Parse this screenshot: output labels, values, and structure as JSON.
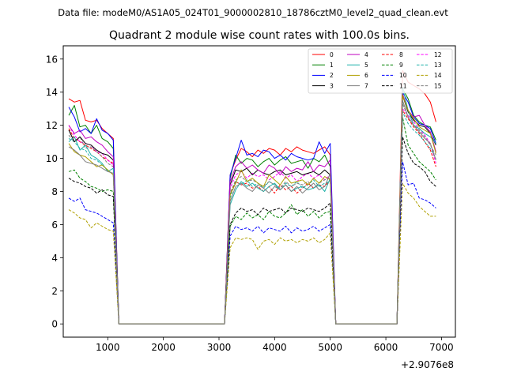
{
  "chart_data": {
    "type": "line",
    "suptitle": "Data file: modeM0/AS1A05_024T01_9000002810_18786cztM0_level2_quad_clean.evt",
    "title": "Quadrant 2 module wise count rates with 100.0s bins.",
    "xlabel": "",
    "ylabel": "",
    "offset_text": "+2.9076e8",
    "xlim": [
      200,
      7250
    ],
    "ylim": [
      -0.8,
      16.8
    ],
    "x_ticks": [
      1000,
      2000,
      3000,
      4000,
      5000,
      6000,
      7000
    ],
    "y_ticks": [
      0,
      2,
      4,
      6,
      8,
      10,
      12,
      14,
      16
    ],
    "legend_position": "top-right",
    "legend_ncol": 4,
    "segments": [
      {
        "start": 300,
        "end": 1100,
        "step": 100
      },
      {
        "start": 3200,
        "end": 5000,
        "step": 100
      },
      {
        "start": 6300,
        "end": 6900,
        "step": 100
      }
    ],
    "zero_edges": [
      1200,
      3100,
      5100,
      6200
    ],
    "series": [
      {
        "name": "0",
        "color": "#ff0000",
        "dash": "solid",
        "seg1": [
          13.6,
          13.4,
          13.5,
          12.3,
          12.2,
          12.3,
          11.8,
          11.5,
          11.2
        ],
        "seg2": [
          9.0,
          9.9,
          10.6,
          10.4,
          10.1,
          10.5,
          10.3,
          10.6,
          10.5,
          10.2,
          10.6,
          10.4,
          10.7,
          10.5,
          10.4,
          10.3,
          10.5,
          10.7,
          10.2
        ],
        "seg3": [
          15.3,
          14.6,
          14.4,
          14.2,
          13.9,
          13.4,
          12.2
        ]
      },
      {
        "name": "1",
        "color": "#008000",
        "dash": "solid",
        "seg1": [
          12.6,
          13.2,
          11.9,
          12.0,
          11.5,
          12.0,
          11.2,
          11.0,
          10.6
        ],
        "seg2": [
          8.8,
          10.2,
          9.7,
          10.0,
          9.9,
          9.5,
          9.8,
          10.0,
          9.6,
          9.9,
          10.1,
          9.7,
          9.8,
          9.9,
          9.4,
          10.0,
          9.8,
          10.2,
          9.5
        ],
        "seg3": [
          14.2,
          13.6,
          12.6,
          12.2,
          12.0,
          11.9,
          11.1
        ]
      },
      {
        "name": "2",
        "color": "#0000ff",
        "dash": "solid",
        "seg1": [
          13.1,
          12.5,
          11.6,
          11.8,
          11.5,
          12.4,
          11.7,
          11.5,
          11.1
        ],
        "seg2": [
          9.0,
          10.0,
          11.1,
          10.2,
          10.3,
          10.1,
          10.5,
          10.4,
          10.0,
          10.2,
          9.9,
          10.3,
          10.1,
          10.0,
          9.9,
          10.0,
          11.0,
          10.3,
          10.9
        ],
        "seg3": [
          14.0,
          13.4,
          12.5,
          12.1,
          12.0,
          11.8,
          10.9
        ]
      },
      {
        "name": "3",
        "color": "#000000",
        "dash": "solid",
        "seg1": [
          11.7,
          11.0,
          11.3,
          10.9,
          10.8,
          10.5,
          10.3,
          10.2,
          9.9
        ],
        "seg2": [
          8.4,
          9.3,
          9.2,
          9.4,
          9.0,
          9.3,
          9.1,
          9.0,
          9.2,
          9.3,
          9.0,
          9.1,
          9.2,
          9.0,
          9.1,
          9.2,
          9.0,
          9.3,
          9.0
        ],
        "seg3": [
          13.8,
          12.8,
          12.3,
          12.0,
          11.9,
          11.5,
          10.8
        ]
      },
      {
        "name": "4",
        "color": "#bf00bf",
        "dash": "solid",
        "seg1": [
          12.0,
          11.5,
          11.7,
          11.2,
          11.3,
          11.0,
          10.8,
          10.4,
          10.1
        ],
        "seg2": [
          8.6,
          9.5,
          9.8,
          9.4,
          9.6,
          9.3,
          9.1,
          9.6,
          9.4,
          9.0,
          9.5,
          9.2,
          9.4,
          9.3,
          9.8,
          9.2,
          9.6,
          9.5,
          9.9
        ],
        "seg3": [
          13.9,
          12.9,
          12.5,
          12.6,
          12.0,
          11.6,
          10.4
        ]
      },
      {
        "name": "5",
        "color": "#20b2aa",
        "dash": "solid",
        "seg1": [
          11.0,
          11.3,
          10.5,
          10.8,
          10.2,
          10.0,
          9.7,
          9.2,
          9.4
        ],
        "seg2": [
          7.2,
          8.1,
          8.6,
          8.3,
          8.5,
          8.2,
          8.0,
          8.3,
          8.5,
          8.1,
          8.4,
          8.0,
          8.2,
          8.3,
          8.1,
          8.2,
          8.4,
          8.0,
          8.8
        ],
        "seg3": [
          14.3,
          12.9,
          12.0,
          11.8,
          11.5,
          11.3,
          10.9
        ]
      },
      {
        "name": "6",
        "color": "#b0a000",
        "dash": "solid",
        "seg1": [
          10.9,
          10.4,
          10.2,
          10.1,
          9.8,
          9.5,
          9.6,
          9.3,
          9.0
        ],
        "seg2": [
          7.8,
          8.5,
          9.3,
          8.6,
          8.8,
          8.5,
          8.3,
          9.0,
          8.7,
          8.4,
          8.9,
          8.5,
          8.6,
          8.7,
          8.4,
          8.8,
          8.5,
          8.9,
          8.7
        ],
        "seg3": [
          13.8,
          12.9,
          12.4,
          11.9,
          11.7,
          11.5,
          10.3
        ]
      },
      {
        "name": "7",
        "color": "#7f7f7f",
        "dash": "solid",
        "seg1": [
          10.7,
          10.5,
          10.2,
          9.8,
          9.7,
          9.6,
          9.4,
          9.2,
          9.1
        ],
        "seg2": [
          7.4,
          8.3,
          8.5,
          8.2,
          8.0,
          8.4,
          8.2,
          7.9,
          8.3,
          8.1,
          8.4,
          8.0,
          8.3,
          7.9,
          8.2,
          8.5,
          8.1,
          8.3,
          9.1
        ],
        "seg3": [
          13.5,
          12.5,
          12.0,
          11.6,
          11.2,
          10.9,
          9.9
        ]
      },
      {
        "name": "8",
        "color": "#ff0000",
        "dash": "dashed",
        "seg1": [
          11.8,
          11.2,
          11.0,
          10.8,
          10.6,
          10.4,
          10.1,
          9.9,
          9.7
        ],
        "seg2": [
          7.8,
          8.6,
          8.4,
          8.5,
          8.2,
          8.3,
          8.0,
          8.3,
          7.9,
          8.4,
          8.1,
          8.3,
          7.9,
          8.2,
          8.5,
          8.2,
          8.4,
          8.3,
          8.7
        ],
        "seg3": [
          12.9,
          12.4,
          11.9,
          11.5,
          11.0,
          10.5,
          9.5
        ]
      },
      {
        "name": "9",
        "color": "#008000",
        "dash": "dashed",
        "seg1": [
          9.2,
          9.3,
          8.8,
          8.6,
          8.3,
          8.2,
          8.0,
          8.1,
          8.0
        ],
        "seg2": [
          5.9,
          6.5,
          6.3,
          6.7,
          6.4,
          6.6,
          6.3,
          6.8,
          6.5,
          6.4,
          6.7,
          7.2,
          6.6,
          6.9,
          6.5,
          6.8,
          6.4,
          6.7,
          6.8
        ],
        "seg3": [
          12.5,
          10.8,
          10.3,
          9.8,
          9.5,
          9.2,
          8.7
        ]
      },
      {
        "name": "10",
        "color": "#0000ff",
        "dash": "dashed",
        "seg1": [
          7.6,
          7.4,
          7.6,
          6.9,
          6.8,
          6.7,
          6.5,
          6.3,
          6.1
        ],
        "seg2": [
          5.3,
          5.9,
          5.7,
          5.8,
          5.6,
          5.9,
          5.5,
          5.8,
          5.7,
          5.6,
          5.9,
          5.5,
          5.8,
          5.6,
          5.7,
          5.9,
          5.6,
          5.8,
          6.0
        ],
        "seg3": [
          9.8,
          8.4,
          8.5,
          7.6,
          7.5,
          7.3,
          7.0
        ]
      },
      {
        "name": "11",
        "color": "#000000",
        "dash": "dashed",
        "seg1": [
          8.8,
          8.6,
          8.5,
          8.3,
          8.2,
          7.9,
          8.1,
          7.8,
          7.7
        ],
        "seg2": [
          6.0,
          6.7,
          7.0,
          6.8,
          6.9,
          6.6,
          7.0,
          6.8,
          6.9,
          7.0,
          6.7,
          7.0,
          6.9,
          6.8,
          7.0,
          6.9,
          6.8,
          7.0,
          7.3
        ],
        "seg3": [
          11.3,
          10.3,
          9.7,
          9.5,
          9.2,
          8.6,
          8.3
        ]
      },
      {
        "name": "12",
        "color": "#ff00ff",
        "dash": "dashed",
        "seg1": [
          12.0,
          11.4,
          11.0,
          10.9,
          10.8,
          10.4,
          10.3,
          9.9,
          9.6
        ],
        "seg2": [
          8.2,
          9.0,
          9.2,
          8.8,
          9.1,
          8.9,
          9.0,
          8.7,
          8.9,
          9.2,
          8.8,
          9.0,
          8.6,
          8.9,
          9.1,
          8.8,
          9.0,
          8.7,
          9.0
        ],
        "seg3": [
          13.0,
          12.6,
          12.2,
          11.8,
          11.4,
          10.9,
          9.7
        ]
      },
      {
        "name": "13",
        "color": "#20b2aa",
        "dash": "dashed",
        "seg1": [
          11.2,
          11.0,
          10.6,
          10.5,
          10.0,
          9.9,
          9.6,
          9.3,
          9.0
        ],
        "seg2": [
          7.6,
          8.6,
          8.4,
          8.7,
          8.3,
          8.5,
          8.2,
          8.6,
          8.4,
          8.1,
          8.5,
          8.3,
          8.6,
          8.2,
          8.4,
          8.7,
          8.3,
          8.5,
          8.6
        ],
        "seg3": [
          12.8,
          12.1,
          11.7,
          11.4,
          11.0,
          10.6,
          10.0
        ]
      },
      {
        "name": "14",
        "color": "#b0a000",
        "dash": "dashed",
        "seg1": [
          6.9,
          6.7,
          6.4,
          6.3,
          5.8,
          6.1,
          5.9,
          5.7,
          5.6
        ],
        "seg2": [
          4.6,
          5.2,
          5.1,
          5.2,
          5.1,
          4.5,
          5.0,
          5.1,
          4.8,
          5.2,
          5.0,
          5.1,
          4.9,
          5.1,
          5.0,
          5.2,
          4.9,
          5.1,
          5.5
        ],
        "seg3": [
          8.5,
          7.9,
          7.6,
          7.1,
          6.8,
          6.5,
          6.5
        ]
      },
      {
        "name": "15",
        "color": "#7f7f7f",
        "dash": "dashed",
        "seg1": [
          11.4,
          11.0,
          11.3,
          10.6,
          10.7,
          10.4,
          10.1,
          9.7,
          9.5
        ],
        "seg2": [
          7.9,
          8.7,
          8.9,
          8.6,
          8.7,
          8.5,
          8.3,
          8.6,
          8.4,
          8.2,
          8.6,
          8.3,
          8.5,
          8.4,
          8.6,
          8.2,
          8.5,
          8.7,
          8.8
        ],
        "seg3": [
          13.3,
          12.5,
          12.0,
          11.7,
          11.3,
          10.8,
          10.2
        ]
      }
    ]
  }
}
